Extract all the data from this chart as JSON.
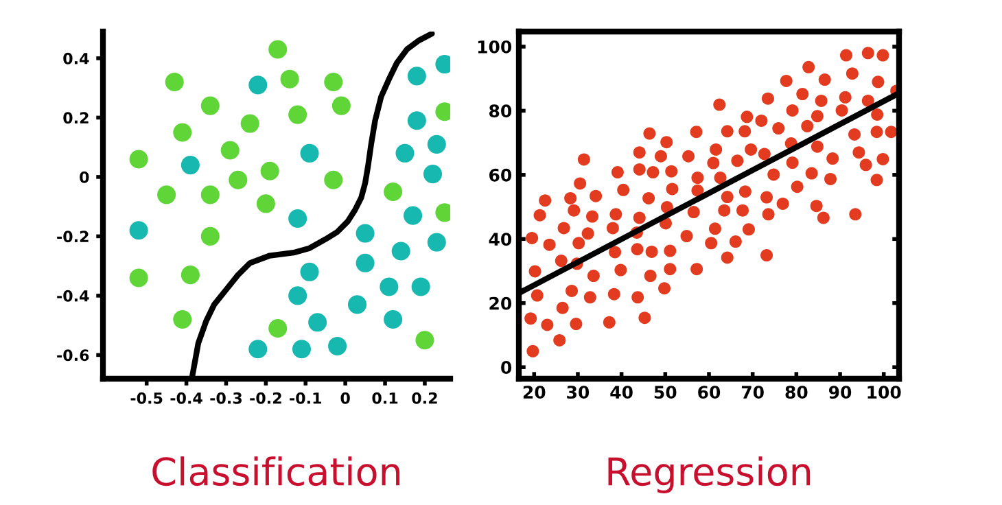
{
  "chart_data": [
    {
      "type": "scatter",
      "title": "Classification",
      "xlim": [
        -0.61,
        0.264
      ],
      "ylim": [
        -0.68,
        0.49
      ],
      "xticks": [
        -0.5,
        -0.4,
        -0.3,
        -0.2,
        -0.1,
        0,
        0.1,
        0.2
      ],
      "yticks": [
        -0.6,
        -0.4,
        -0.2,
        0,
        0.2,
        0.4
      ],
      "grid": false,
      "series": [
        {
          "marker": "circle",
          "color": "#5fd537",
          "x": [
            -0.17,
            -0.43,
            -0.14,
            -0.03,
            -0.34,
            -0.01,
            -0.24,
            -0.12,
            -0.41,
            -0.29,
            -0.52,
            -0.19,
            -0.27,
            -0.03,
            -0.45,
            -0.34,
            -0.2,
            0.12,
            0.25,
            0.25,
            -0.34,
            -0.52,
            -0.39,
            -0.41,
            -0.17,
            0.2
          ],
          "values": [
            0.43,
            0.32,
            0.33,
            0.32,
            0.24,
            0.24,
            0.18,
            0.21,
            0.15,
            0.09,
            0.06,
            0.02,
            -0.01,
            -0.01,
            -0.06,
            -0.06,
            -0.09,
            -0.05,
            -0.12,
            0.22,
            -0.2,
            -0.34,
            -0.33,
            -0.48,
            -0.51,
            -0.55
          ]
        },
        {
          "marker": "circle",
          "color": "#17b8b0",
          "x": [
            -0.22,
            0.18,
            0.25,
            0.18,
            -0.09,
            0.15,
            0.23,
            0.22,
            -0.39,
            -0.52,
            -0.12,
            0.17,
            0.05,
            0.23,
            0.14,
            0.05,
            -0.09,
            0.11,
            0.19,
            -0.12,
            0.03,
            -0.07,
            0.12,
            -0.22,
            -0.11,
            -0.02
          ],
          "values": [
            0.31,
            0.34,
            0.38,
            0.19,
            0.08,
            0.08,
            0.11,
            0.01,
            0.04,
            -0.18,
            -0.14,
            -0.13,
            -0.19,
            -0.22,
            -0.25,
            -0.29,
            -0.32,
            -0.37,
            -0.37,
            -0.4,
            -0.43,
            -0.49,
            -0.48,
            -0.58,
            -0.58,
            -0.57
          ]
        },
        {
          "type": "line",
          "marker": "none",
          "color": "#000000",
          "line_style": "solid",
          "x": [
            -0.385,
            -0.37,
            -0.35,
            -0.33,
            -0.3,
            -0.27,
            -0.24,
            -0.19,
            -0.13,
            -0.09,
            -0.05,
            -0.02,
            0.006,
            0.025,
            0.04,
            0.05,
            0.057,
            0.065,
            0.075,
            0.09,
            0.11,
            0.13,
            0.155,
            0.185,
            0.218
          ],
          "values": [
            -0.67,
            -0.56,
            -0.485,
            -0.43,
            -0.38,
            -0.33,
            -0.29,
            -0.265,
            -0.255,
            -0.24,
            -0.21,
            -0.185,
            -0.15,
            -0.11,
            -0.07,
            -0.02,
            0.035,
            0.11,
            0.19,
            0.27,
            0.33,
            0.385,
            0.43,
            0.46,
            0.483
          ]
        }
      ]
    },
    {
      "type": "scatter",
      "title": "Regression",
      "xlim": [
        16.5,
        103.5
      ],
      "ylim": [
        -3.6,
        104.7
      ],
      "xticks": [
        20,
        30,
        40,
        50,
        60,
        70,
        80,
        90,
        100
      ],
      "yticks": [
        0,
        20,
        40,
        60,
        80,
        100
      ],
      "grid": false,
      "series": [
        {
          "marker": "circle",
          "color": "#e23b1f",
          "x": [
            19.5,
            20.2,
            20.7,
            19.2,
            19.7,
            21.3,
            22.5,
            23.5,
            23,
            26.2,
            26.8,
            26.5,
            25.8,
            28.3,
            29.1,
            30.2,
            29.8,
            28.6,
            29.6,
            30.5,
            31.4,
            32.3,
            33.3,
            34.1,
            33.6,
            32.8,
            39.1,
            40.4,
            38.7,
            38,
            38.5,
            39.8,
            38.3,
            37.2,
            44.1,
            44.1,
            44.1,
            43.5,
            43.6,
            43.7,
            45.3,
            46.4,
            46.2,
            47.2,
            46.9,
            46.6,
            49,
            50.3,
            50.4,
            50.1,
            51.4,
            51.6,
            51.1,
            51.1,
            49.8,
            55.3,
            57.1,
            57.4,
            57.4,
            56.5,
            54.9,
            57.2,
            62.4,
            61.6,
            61,
            62.6,
            64.2,
            64.2,
            63.5,
            61.4,
            60.5,
            64.2,
            66.1,
            66.5,
            68.7,
            68.2,
            69.6,
            68.3,
            67.7,
            69.1,
            72,
            73.5,
            72.7,
            74.8,
            75.9,
            73.2,
            73.6,
            73.2,
            76.9,
            77.7,
            79.1,
            78.8,
            79.1,
            80.2,
            81.4,
            82.8,
            82.5,
            84.8,
            84.8,
            83.5,
            84.6,
            86.2,
            85.7,
            86.5,
            88.3,
            87.8,
            90.4,
            91.4,
            91.2,
            92.8,
            93.3,
            93.5,
            94.3,
            95.9,
            96.4,
            96.4,
            98.5,
            98.7,
            98.4,
            98.4,
            99.8,
            99.8,
            101.7,
            102.9
          ],
          "values": [
            40.3,
            29.9,
            22.4,
            15.2,
            5,
            47.4,
            52,
            38.2,
            13.2,
            33.2,
            43.4,
            18.5,
            8.4,
            52.7,
            48.9,
            38.7,
            32.3,
            23.8,
            13.5,
            57.3,
            64.8,
            41.7,
            47,
            53.4,
            28.5,
            21.8,
            60.8,
            55.3,
            47.7,
            43.4,
            35.9,
            30.3,
            22.8,
            14,
            67,
            61.7,
            46.6,
            42,
            36.8,
            21.8,
            15.4,
            72.9,
            52.7,
            60.8,
            36,
            28.5,
            65.8,
            70.2,
            49.9,
            44.9,
            61.1,
            55.6,
            36.3,
            30.6,
            24.6,
            65.8,
            73.4,
            59.1,
            55.1,
            48.4,
            40.9,
            30.6,
            81.9,
            67.9,
            63.7,
            59.1,
            73.6,
            53.1,
            48.9,
            43.2,
            38.7,
            34.2,
            39.2,
            64.4,
            78.1,
            73.6,
            67.9,
            54.8,
            48.9,
            43,
            76.9,
            83.8,
            66.5,
            60.1,
            74.5,
            53,
            47.7,
            34.9,
            51,
            89.3,
            80.1,
            69.8,
            63.8,
            56.3,
            85.2,
            93.6,
            75.2,
            78.3,
            68.8,
            60.5,
            50.3,
            46.6,
            83.1,
            89.7,
            65.1,
            58.7,
            80.1,
            97.3,
            84.2,
            91.6,
            72.6,
            47.7,
            67,
            63.1,
            98,
            83.1,
            78.8,
            89,
            73.4,
            58.4,
            97.3,
            64.9,
            73.4,
            86.2
          ]
        },
        {
          "type": "line",
          "marker": "none",
          "color": "#000000",
          "line_style": "solid",
          "x": [
            16.5,
            103.5
          ],
          "values": [
            23.1,
            85.5
          ]
        }
      ]
    }
  ]
}
